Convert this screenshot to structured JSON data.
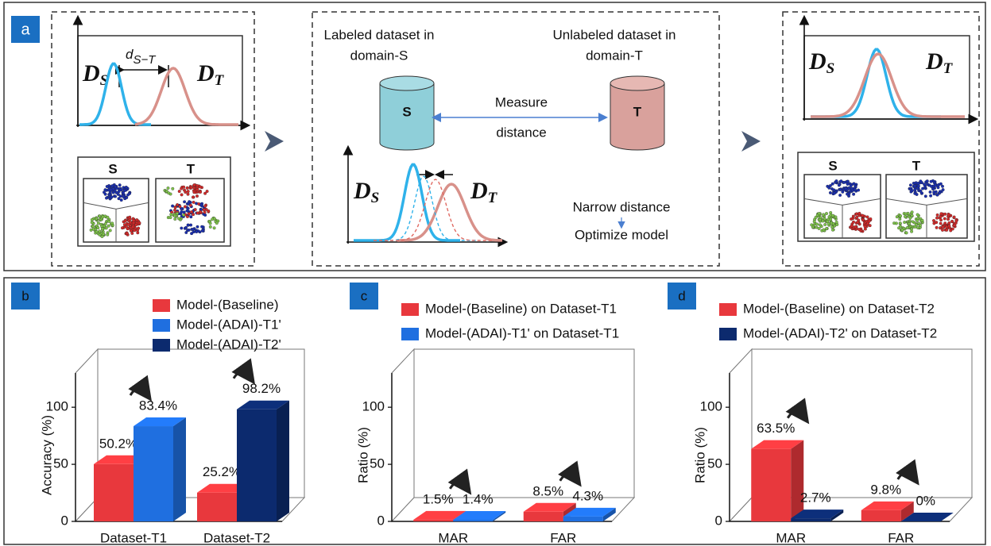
{
  "diagram": {
    "panel": "a",
    "D_S": {
      "main": "D",
      "sub": "S"
    },
    "D_T": {
      "main": "D",
      "sub": "T"
    },
    "d_ST": {
      "main": "d",
      "sub": "S−T"
    },
    "source_label": "S",
    "target_label": "T",
    "labeled_line1": "Labeled dataset in",
    "labeled_line2": "domain-S",
    "unlabeled_line1": "Unlabeled dataset in",
    "unlabeled_line2": "domain-T",
    "measure_line1": "Measure",
    "measure_line2": "distance",
    "narrow": "Narrow distance",
    "optimize": "Optimize model"
  },
  "chart_data": [
    {
      "type": "bar3d",
      "panel": "b",
      "ylabel": "Accuracy (%)",
      "categories": [
        "Dataset-T1",
        "Dataset-T2"
      ],
      "ylim": [
        0,
        130
      ],
      "yticks": [
        0,
        50,
        100
      ],
      "series": [
        {
          "name": "Model-(Baseline)",
          "color": "#e8383d",
          "values": [
            50.2,
            25.2
          ],
          "value_labels": [
            "50.2%",
            "25.2%"
          ]
        },
        {
          "name": "Model-(ADAI)-T1'",
          "color": "#1f6fe0",
          "values": [
            83.4,
            null
          ],
          "value_labels": [
            "83.4%",
            null
          ]
        },
        {
          "name": "Model-(ADAI)-T2'",
          "color": "#0c2a6e",
          "values": [
            null,
            98.2
          ],
          "value_labels": [
            null,
            "98.2%"
          ]
        }
      ]
    },
    {
      "type": "bar3d",
      "panel": "c",
      "ylabel": "Ratio (%)",
      "categories": [
        "MAR",
        "FAR"
      ],
      "ylim": [
        0,
        130
      ],
      "yticks": [
        0,
        50,
        100
      ],
      "series": [
        {
          "name": "Model-(Baseline) on Dataset-T1",
          "color": "#e8383d",
          "values": [
            1.5,
            8.5
          ],
          "value_labels": [
            "1.5%",
            "8.5%"
          ]
        },
        {
          "name": "Model-(ADAI)-T1' on Dataset-T1",
          "color": "#1f6fe0",
          "values": [
            1.4,
            4.3
          ],
          "value_labels": [
            "1.4%",
            "4.3%"
          ]
        }
      ]
    },
    {
      "type": "bar3d",
      "panel": "d",
      "ylabel": "Ratio (%)",
      "categories": [
        "MAR",
        "FAR"
      ],
      "ylim": [
        0,
        130
      ],
      "yticks": [
        0,
        50,
        100
      ],
      "series": [
        {
          "name": "Model-(Baseline) on Dataset-T2",
          "color": "#e8383d",
          "values": [
            63.5,
            9.8
          ],
          "value_labels": [
            "63.5%",
            "9.8%"
          ]
        },
        {
          "name": "Model-(ADAI)-T2' on Dataset-T2",
          "color": "#0c2a6e",
          "values": [
            2.7,
            0
          ],
          "value_labels": [
            "2.7%",
            "0%"
          ]
        }
      ]
    }
  ]
}
